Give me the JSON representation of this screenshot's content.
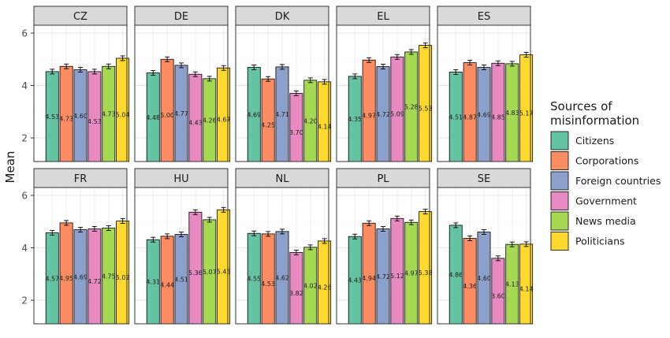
{
  "chart_data": {
    "type": "bar",
    "facets": [
      "CZ",
      "DE",
      "DK",
      "EL",
      "ES",
      "FR",
      "HU",
      "NL",
      "PL",
      "SE"
    ],
    "categories": [
      "Citizens",
      "Corporations",
      "Foreign countries",
      "Government",
      "News media",
      "Politicians"
    ],
    "colors": [
      "#66c2a5",
      "#fc8d62",
      "#8da0cb",
      "#e78ac3",
      "#a6d854",
      "#ffd92f"
    ],
    "values": {
      "CZ": [
        4.53,
        4.73,
        4.6,
        4.53,
        4.73,
        5.04
      ],
      "DE": [
        4.48,
        5.0,
        4.77,
        4.43,
        4.26,
        4.67
      ],
      "DK": [
        4.69,
        4.25,
        4.71,
        3.7,
        4.2,
        4.14
      ],
      "EL": [
        4.35,
        4.97,
        4.72,
        5.09,
        5.28,
        5.53
      ],
      "ES": [
        4.51,
        4.87,
        4.69,
        4.85,
        4.83,
        5.17
      ],
      "FR": [
        4.57,
        4.95,
        4.69,
        4.72,
        4.75,
        5.02
      ],
      "HU": [
        4.31,
        4.44,
        4.51,
        5.36,
        5.07,
        5.45
      ],
      "NL": [
        4.55,
        4.53,
        4.62,
        3.82,
        4.02,
        4.26
      ],
      "PL": [
        4.43,
        4.94,
        4.72,
        5.12,
        4.97,
        5.38
      ],
      "SE": [
        4.86,
        4.36,
        4.6,
        3.6,
        4.13,
        4.14
      ]
    },
    "value_labels": {
      "CZ": [
        "4.53",
        "4.73",
        "4.60",
        "4.53",
        "4.73",
        "5.04"
      ],
      "DE": [
        "4.48",
        "5.00",
        "4.77",
        "4.43",
        "4.26",
        "4.67"
      ],
      "DK": [
        "4.69",
        "4.25",
        "4.71",
        "3.70",
        "4.20",
        "4.14"
      ],
      "EL": [
        "4.35",
        "4.97",
        "4.72",
        "5.09",
        "5.28",
        "5.53"
      ],
      "ES": [
        "4.51",
        "4.87",
        "4.69",
        "4.85",
        "4.83",
        "5.17"
      ],
      "FR": [
        "4.57",
        "4.95",
        "4.69",
        "4.72",
        "4.75",
        "5.02"
      ],
      "HU": [
        "4.31",
        "4.44",
        "4.51",
        "5.36",
        "5.07",
        "5.45"
      ],
      "NL": [
        "4.55",
        "4.53",
        "4.62",
        "3.82",
        "4.02",
        "4.26"
      ],
      "PL": [
        "4.43",
        "4.94",
        "4.72",
        "5.12",
        "4.97",
        "5.38"
      ],
      "SE": [
        "4.86",
        "4.36",
        "4.60",
        "3.60",
        "4.13",
        "4.14"
      ]
    },
    "error_half_width": 0.09,
    "ylabel": "Mean",
    "ylim": [
      1.1,
      6.3
    ],
    "yticks": [
      2,
      4,
      6
    ],
    "legend": {
      "title_line1": "Sources of",
      "title_line2": " misinformation",
      "position": "right"
    },
    "grid": true
  }
}
